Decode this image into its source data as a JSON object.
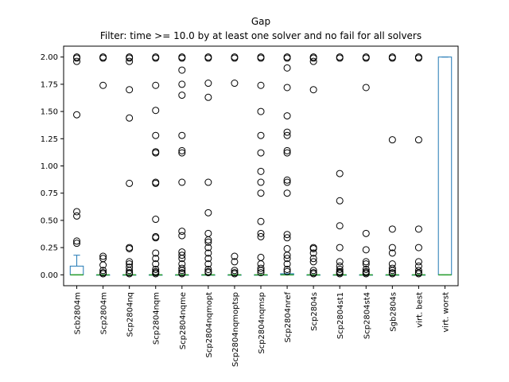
{
  "chart_data": {
    "type": "box",
    "title": "Gap",
    "subtitle": "Filter: time >= 10.0 by at least one solver and no fail for all solvers",
    "ylim": [
      -0.1,
      2.1
    ],
    "yticks": [
      0.0,
      0.25,
      0.5,
      0.75,
      1.0,
      1.25,
      1.5,
      1.75,
      2.0
    ],
    "ytick_labels": [
      "0.00",
      "0.25",
      "0.50",
      "0.75",
      "1.00",
      "1.25",
      "1.50",
      "1.75",
      "2.00"
    ],
    "grid": false,
    "categories": [
      "Scb2804m",
      "Scp2804m",
      "Scp2804nq",
      "Scp2804nqm",
      "Scp2804nqme",
      "Scp2804nqmopt",
      "Scp2804nqmoptsp",
      "Scp2804nqmsp",
      "Scp2804nref",
      "Scp2804s",
      "Scp2804st1",
      "Scp2804st4",
      "Sgb2804s",
      "virt. best",
      "virt. worst"
    ],
    "series": [
      {
        "q1": 0.0,
        "median": 0.0,
        "q3": 0.08,
        "whisker_low": 0.0,
        "whisker_high": 0.18,
        "outliers": [
          2.0,
          1.99,
          1.96,
          1.47,
          0.58,
          0.54,
          0.31,
          0.29
        ]
      },
      {
        "q1": 0.0,
        "median": 0.0,
        "q3": 0.0,
        "whisker_low": 0.0,
        "whisker_high": 0.0,
        "outliers": [
          2.0,
          1.99,
          1.74,
          0.17,
          0.15,
          0.09,
          0.04,
          0.02,
          0.01
        ]
      },
      {
        "q1": 0.0,
        "median": 0.0,
        "q3": 0.0,
        "whisker_low": 0.0,
        "whisker_high": 0.0,
        "outliers": [
          2.0,
          1.99,
          1.96,
          1.7,
          1.44,
          0.84,
          0.25,
          0.24,
          0.12,
          0.1,
          0.07,
          0.04,
          0.02,
          0.01
        ]
      },
      {
        "q1": 0.0,
        "median": 0.0,
        "q3": 0.0,
        "whisker_low": 0.0,
        "whisker_high": 0.0,
        "outliers": [
          2.0,
          1.99,
          1.74,
          1.51,
          1.28,
          1.13,
          1.12,
          0.85,
          0.84,
          0.51,
          0.35,
          0.34,
          0.2,
          0.15,
          0.1,
          0.05,
          0.03,
          0.02,
          0.01
        ]
      },
      {
        "q1": 0.0,
        "median": 0.0,
        "q3": 0.0,
        "whisker_low": 0.0,
        "whisker_high": 0.0,
        "outliers": [
          2.0,
          1.99,
          1.88,
          1.75,
          1.65,
          1.28,
          1.14,
          1.12,
          0.85,
          0.4,
          0.36,
          0.21,
          0.18,
          0.15,
          0.1,
          0.06,
          0.04,
          0.02,
          0.01
        ]
      },
      {
        "q1": 0.0,
        "median": 0.0,
        "q3": 0.0,
        "whisker_low": 0.0,
        "whisker_high": 0.0,
        "outliers": [
          2.0,
          1.99,
          1.76,
          1.63,
          0.85,
          0.57,
          0.38,
          0.32,
          0.3,
          0.25,
          0.2,
          0.15,
          0.1,
          0.05,
          0.03,
          0.02
        ]
      },
      {
        "q1": 0.0,
        "median": 0.0,
        "q3": 0.0,
        "whisker_low": 0.0,
        "whisker_high": 0.0,
        "outliers": [
          2.0,
          1.99,
          1.76,
          0.17,
          0.12,
          0.04,
          0.02,
          0.01
        ]
      },
      {
        "q1": 0.0,
        "median": 0.0,
        "q3": 0.0,
        "whisker_low": 0.0,
        "whisker_high": 0.0,
        "outliers": [
          2.0,
          1.99,
          1.74,
          1.5,
          1.28,
          1.12,
          0.95,
          0.85,
          0.75,
          0.49,
          0.38,
          0.35,
          0.16,
          0.1,
          0.06,
          0.04,
          0.02
        ]
      },
      {
        "q1": 0.0,
        "median": 0.0,
        "q3": 0.01,
        "whisker_low": 0.0,
        "whisker_high": 0.01,
        "outliers": [
          2.0,
          1.99,
          1.9,
          1.72,
          1.46,
          1.31,
          1.28,
          1.14,
          1.12,
          0.87,
          0.85,
          0.75,
          0.37,
          0.34,
          0.24,
          0.18,
          0.15,
          0.1,
          0.05,
          0.03
        ]
      },
      {
        "q1": 0.0,
        "median": 0.0,
        "q3": 0.0,
        "whisker_low": 0.0,
        "whisker_high": 0.0,
        "outliers": [
          2.0,
          1.99,
          1.96,
          1.7,
          0.25,
          0.24,
          0.2,
          0.15,
          0.12,
          0.04,
          0.02,
          0.01
        ]
      },
      {
        "q1": 0.0,
        "median": 0.0,
        "q3": 0.0,
        "whisker_low": 0.0,
        "whisker_high": 0.0,
        "outliers": [
          2.0,
          1.99,
          0.93,
          0.68,
          0.45,
          0.25,
          0.12,
          0.08,
          0.05,
          0.03,
          0.02,
          0.01
        ]
      },
      {
        "q1": 0.0,
        "median": 0.0,
        "q3": 0.0,
        "whisker_low": 0.0,
        "whisker_high": 0.0,
        "outliers": [
          2.0,
          1.99,
          1.72,
          0.38,
          0.23,
          0.12,
          0.1,
          0.05,
          0.03,
          0.02,
          0.01
        ]
      },
      {
        "q1": 0.0,
        "median": 0.0,
        "q3": 0.0,
        "whisker_low": 0.0,
        "whisker_high": 0.0,
        "outliers": [
          2.0,
          1.99,
          1.24,
          0.42,
          0.25,
          0.2,
          0.1,
          0.06,
          0.04,
          0.02,
          0.01
        ]
      },
      {
        "q1": 0.0,
        "median": 0.0,
        "q3": 0.0,
        "whisker_low": 0.0,
        "whisker_high": 0.0,
        "outliers": [
          2.0,
          1.99,
          1.24,
          0.42,
          0.25,
          0.12,
          0.08,
          0.04,
          0.02,
          0.01
        ]
      },
      {
        "q1": 0.0,
        "median": 0.0,
        "q3": 2.0,
        "whisker_low": 0.0,
        "whisker_high": 2.0,
        "outliers": []
      }
    ],
    "colors": {
      "box": "#1f77b4",
      "median": "#2ca02c",
      "whisker": "#1f77b4",
      "outlier": "#000000",
      "axes": "#000000"
    }
  }
}
